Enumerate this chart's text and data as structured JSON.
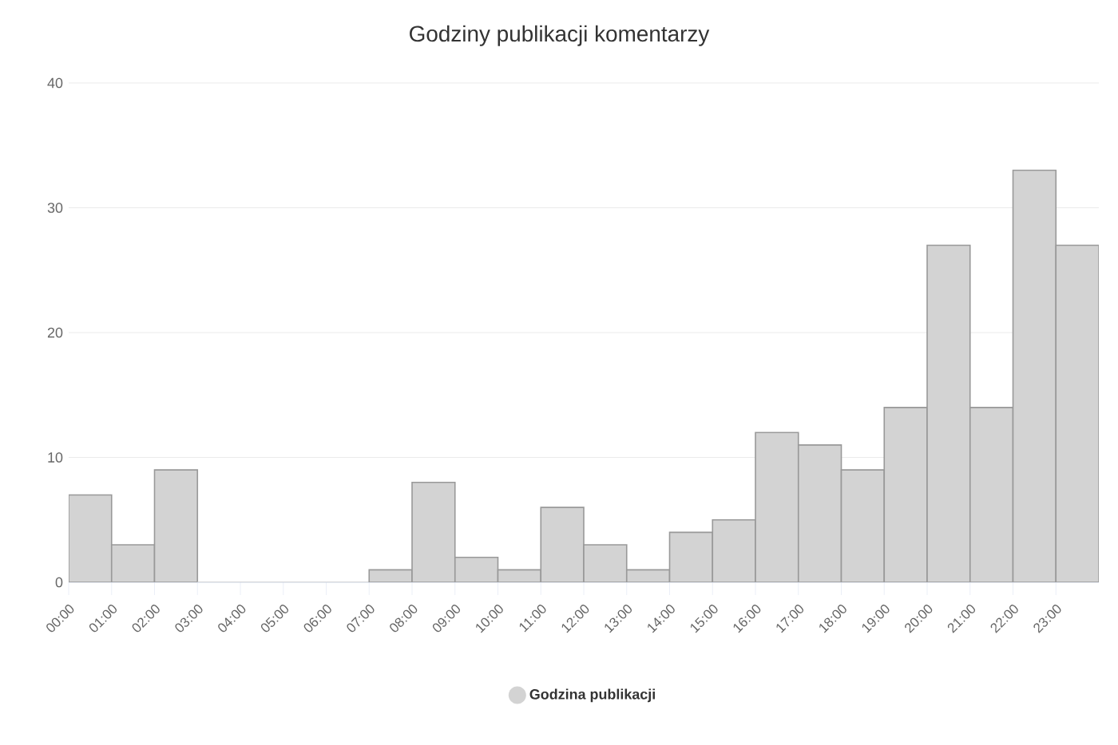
{
  "chart_data": {
    "type": "histogram",
    "title": "Godziny publikacji komentarzy",
    "bins": [
      0,
      1,
      2,
      3,
      4,
      5,
      6,
      7,
      8,
      9,
      10,
      11,
      12,
      13,
      14,
      15,
      16,
      17,
      18,
      19,
      20,
      21,
      22,
      23,
      24
    ],
    "series": [
      {
        "name": "Godzina publikacji",
        "color": "#d3d3d3",
        "values": [
          7,
          3,
          9,
          0,
          0,
          0,
          0,
          1,
          8,
          2,
          1,
          6,
          3,
          1,
          4,
          5,
          12,
          11,
          9,
          14,
          27,
          14,
          33,
          27
        ]
      }
    ],
    "xlim": [
      0,
      24
    ],
    "xticks": [
      {
        "value": 0,
        "label": "00:00"
      },
      {
        "value": 1,
        "label": "01:00"
      },
      {
        "value": 2,
        "label": "02:00"
      },
      {
        "value": 3,
        "label": "03:00"
      },
      {
        "value": 4,
        "label": "04:00"
      },
      {
        "value": 5,
        "label": "05:00"
      },
      {
        "value": 6,
        "label": "06:00"
      },
      {
        "value": 7,
        "label": "07:00"
      },
      {
        "value": 8,
        "label": "08:00"
      },
      {
        "value": 9,
        "label": "09:00"
      },
      {
        "value": 10,
        "label": "10:00"
      },
      {
        "value": 11,
        "label": "11:00"
      },
      {
        "value": 12,
        "label": "12:00"
      },
      {
        "value": 13,
        "label": "13:00"
      },
      {
        "value": 14,
        "label": "14:00"
      },
      {
        "value": 15,
        "label": "15:00"
      },
      {
        "value": 16,
        "label": "16:00"
      },
      {
        "value": 17,
        "label": "17:00"
      },
      {
        "value": 18,
        "label": "18:00"
      },
      {
        "value": 19,
        "label": "19:00"
      },
      {
        "value": 20,
        "label": "20:00"
      },
      {
        "value": 21,
        "label": "21:00"
      },
      {
        "value": 22,
        "label": "22:00"
      },
      {
        "value": 23,
        "label": "23:00"
      }
    ],
    "ylim": [
      0,
      40
    ],
    "yticks": [
      0,
      10,
      20,
      30,
      40
    ],
    "grid": "y",
    "legend": "bottom"
  }
}
